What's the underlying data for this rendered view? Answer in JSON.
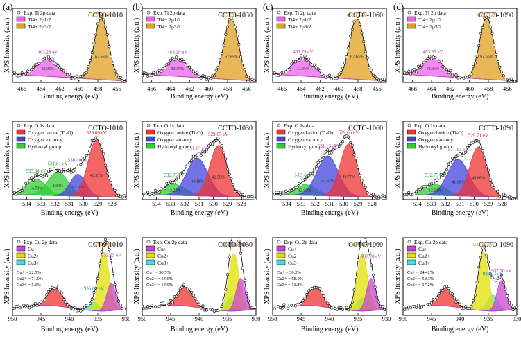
{
  "chart_data": [
    {
      "type": "line",
      "panel_label": "(a)",
      "sample": "CCTO-1010",
      "element": "Ti",
      "title": "Exp. Ti 2p data",
      "legend": [
        "Ti4+ 2p1/2",
        "Ti4+ 2p3/2"
      ],
      "xlabel": "Binding energy (eV)",
      "ylabel": "XPS Intensity (a.u.)",
      "xlim": [
        467,
        455
      ],
      "xticks": [
        466,
        464,
        462,
        460,
        458,
        456
      ],
      "peaks": [
        {
          "name": "Ti4+ 2p1/2",
          "center": 463.28,
          "width": 1.1,
          "amp": 0.27,
          "color": "#ee60ee",
          "label": "463.28 eV",
          "percent": "32.35%"
        },
        {
          "name": "Ti4+ 2p3/2",
          "center": 457.61,
          "width": 0.75,
          "amp": 0.9,
          "color": "#e0a020",
          "label": "457.61 eV",
          "percent": "67.65%"
        }
      ]
    },
    {
      "type": "line",
      "panel_label": "(b)",
      "sample": "CCTO-1030",
      "element": "Ti",
      "title": "Exp. Ti 2p data",
      "legend": [
        "Ti4+ 2p1/2",
        "Ti4+ 2p3/2"
      ],
      "xlabel": "Binding energy (eV)",
      "ylabel": "XPS Intensity (a.u.)",
      "xlim": [
        467,
        455
      ],
      "xticks": [
        466,
        464,
        462,
        460,
        458,
        456
      ],
      "peaks": [
        {
          "name": "Ti4+ 2p1/2",
          "center": 463.28,
          "width": 1.1,
          "amp": 0.27,
          "color": "#ee60ee",
          "label": "463.28 eV",
          "percent": "32.35%"
        },
        {
          "name": "Ti4+ 2p3/2",
          "center": 457.61,
          "width": 0.75,
          "amp": 0.9,
          "color": "#e0a020",
          "label": "457.61 eV",
          "percent": "67.65%"
        }
      ]
    },
    {
      "type": "line",
      "panel_label": "(c)",
      "sample": "CCTO-1060",
      "element": "Ti",
      "title": "Exp. Ti 2p data",
      "legend": [
        "Ti4+ 2p1/2",
        "Ti4+ 2p3/2"
      ],
      "xlabel": "Binding energy (eV)",
      "ylabel": "XPS Intensity (a.u.)",
      "xlim": [
        467,
        455
      ],
      "xticks": [
        466,
        464,
        462,
        460,
        458,
        456
      ],
      "peaks": [
        {
          "name": "Ti4+ 2p1/2",
          "center": 463.79,
          "width": 1.1,
          "amp": 0.27,
          "color": "#ee60ee",
          "label": "463.79 eV",
          "percent": "32.35%"
        },
        {
          "name": "Ti4+ 2p3/2",
          "center": 458.12,
          "width": 0.75,
          "amp": 0.9,
          "color": "#e0a020",
          "label": "458.12 eV",
          "percent": "67.65%"
        }
      ]
    },
    {
      "type": "line",
      "panel_label": "(d)",
      "sample": "CCTO-1090",
      "element": "Ti",
      "title": "Exp. Ti 2p data",
      "legend": [
        "Ti4+ 2p1/2",
        "Ti4+ 2p3/2"
      ],
      "xlabel": "Binding energy (eV)",
      "ylabel": "XPS Intensity (a.u.)",
      "xlim": [
        467,
        455
      ],
      "xticks": [
        466,
        464,
        462,
        460,
        458,
        456
      ],
      "peaks": [
        {
          "name": "Ti4+ 2p1/2",
          "center": 463.85,
          "width": 1.1,
          "amp": 0.27,
          "color": "#ee60ee",
          "label": "463.85 eV",
          "percent": "32.35%"
        },
        {
          "name": "Ti4+ 2p3/2",
          "center": 458.18,
          "width": 0.75,
          "amp": 0.9,
          "color": "#e0a020",
          "label": "458.18 eV",
          "percent": "67.65%"
        }
      ]
    },
    {
      "type": "line",
      "sample": "CCTO-1010",
      "element": "O",
      "title": "Exp. O 1s data",
      "legend": [
        "Oxygen lattice (Ti-O)",
        "Oxygen vacancy",
        "Hydroxyl group"
      ],
      "xlabel": "Binding energy (eV)",
      "ylabel": "XPS Intensity (a.u.)",
      "xlim": [
        535,
        527
      ],
      "xticks": [
        534,
        533,
        532,
        531,
        530,
        529,
        528
      ],
      "peaks": [
        {
          "name": "Hydroxyl group",
          "center": 533.34,
          "width": 0.7,
          "amp": 0.22,
          "color": "#33cc33",
          "label": "533.34 eV",
          "percent": "14.70%"
        },
        {
          "name": "Hydroxyl group",
          "center": 531.81,
          "width": 0.7,
          "amp": 0.33,
          "color": "#33cc33",
          "label": "531.81 eV",
          "percent": "8.39%"
        },
        {
          "name": "Oxygen vacancy",
          "center": 530.4,
          "width": 0.55,
          "amp": 0.3,
          "color": "#4444dd",
          "label": "530.40 eV",
          "percent": "17.78%"
        },
        {
          "name": "Oxygen lattice (Ti-O)",
          "center": 529.09,
          "width": 0.6,
          "amp": 0.78,
          "color": "#ee3333",
          "label": "529.09 eV",
          "percent": "49.53%"
        }
      ]
    },
    {
      "type": "line",
      "sample": "CCTO-1030",
      "element": "O",
      "title": "Exp. O 1s data",
      "legend": [
        "Oxygen lattice (Ti-O)",
        "Oxygen vacancy",
        "Hydroxyl group"
      ],
      "xlabel": "Binding energy (eV)",
      "ylabel": "XPS Intensity (a.u.)",
      "xlim": [
        535,
        527
      ],
      "xticks": [
        534,
        533,
        532,
        531,
        530,
        529,
        528
      ],
      "peaks": [
        {
          "name": "Hydroxyl group",
          "center": 532.75,
          "width": 0.8,
          "amp": 0.15,
          "color": "#33cc33",
          "label": "532.75 eV",
          "percent": "13.25%"
        },
        {
          "name": "Oxygen vacancy",
          "center": 531.13,
          "width": 0.75,
          "amp": 0.52,
          "color": "#4444dd",
          "label": "531.13 eV",
          "percent": "44.19%"
        },
        {
          "name": "Oxygen lattice (Ti-O)",
          "center": 529.65,
          "width": 0.6,
          "amp": 0.7,
          "color": "#ee3333",
          "label": "529.65 eV",
          "percent": "42.58%"
        }
      ]
    },
    {
      "type": "line",
      "sample": "CCTO-1060",
      "element": "O",
      "title": "Exp. O 1s data",
      "legend": [
        "Oxygen lattice (Ti-O)",
        "Oxygen vacancy",
        "Hydroxyl group"
      ],
      "xlabel": "Binding energy (eV)",
      "ylabel": "XPS Intensity (a.u.)",
      "xlim": [
        535,
        527
      ],
      "xticks": [
        534,
        533,
        532,
        531,
        530,
        529,
        528
      ],
      "peaks": [
        {
          "name": "Hydroxyl group",
          "center": 532.75,
          "width": 0.8,
          "amp": 0.15,
          "color": "#33cc33",
          "label": "532.75 eV",
          "percent": "12.60%"
        },
        {
          "name": "Oxygen vacancy",
          "center": 531.13,
          "width": 0.75,
          "amp": 0.55,
          "color": "#4444dd",
          "label": "531.13 eV",
          "percent": "42.62%"
        },
        {
          "name": "Oxygen lattice (Ti-O)",
          "center": 529.66,
          "width": 0.6,
          "amp": 0.72,
          "color": "#ee3333",
          "label": "529.66 eV",
          "percent": "44.77%"
        }
      ]
    },
    {
      "type": "line",
      "sample": "CCTO-1090",
      "element": "O",
      "title": "Exp. O 1s data",
      "legend": [
        "Oxygen lattice (Ti-O)",
        "Oxygen vacancy",
        "Hydroxyl group"
      ],
      "xlabel": "Binding energy (eV)",
      "ylabel": "XPS Intensity (a.u.)",
      "xlim": [
        535,
        527
      ],
      "xticks": [
        534,
        533,
        532,
        531,
        530,
        529,
        528
      ],
      "peaks": [
        {
          "name": "Hydroxyl group",
          "center": 532.75,
          "width": 0.8,
          "amp": 0.15,
          "color": "#33cc33",
          "label": "532.75 eV",
          "percent": "12.54%"
        },
        {
          "name": "Oxygen vacancy",
          "center": 531.13,
          "width": 0.75,
          "amp": 0.5,
          "color": "#4444dd",
          "label": "531.13 eV",
          "percent": "41.60%"
        },
        {
          "name": "Oxygen lattice (Ti-O)",
          "center": 529.71,
          "width": 0.6,
          "amp": 0.68,
          "color": "#ee3333",
          "label": "529.71 eV",
          "percent": "45.86%"
        }
      ]
    },
    {
      "type": "line",
      "sample": "CCTO-1010",
      "element": "Cu",
      "title": "Exp. Cu 2p data",
      "legend": [
        "Cu+",
        "Cu2+",
        "Cu3+"
      ],
      "composition": [
        "Cu+ = 22.5%",
        "Cu2+ = 71.9%",
        "Cu3+ = 5.6%"
      ],
      "xlabel": "Binding energy (eV)",
      "ylabel": "XPS Intensity (a.u.)",
      "xlim": [
        950,
        930
      ],
      "xticks": [
        950,
        945,
        940,
        935,
        930
      ],
      "peaks": [
        {
          "name": "satellite",
          "center": 942.5,
          "width": 1.3,
          "amp": 0.25,
          "color": "#ee3333",
          "label": "",
          "percent": ""
        },
        {
          "name": "Cu3+",
          "center": 935.69,
          "width": 0.9,
          "amp": 0.12,
          "color": "#40e0e0",
          "label": "935.69 eV",
          "percent": ""
        },
        {
          "name": "Cu2+",
          "center": 933.89,
          "width": 0.9,
          "amp": 0.82,
          "color": "#e0e000",
          "label": "933.89 eV",
          "percent": ""
        },
        {
          "name": "Cu+",
          "center": 932.63,
          "width": 0.8,
          "amp": 0.38,
          "color": "#cc44cc",
          "label": "932.63 eV",
          "percent": ""
        }
      ]
    },
    {
      "type": "line",
      "sample": "CCTO-1030",
      "element": "Cu",
      "title": "Exp. Cu 2p data",
      "legend": [
        "Cu+",
        "Cu2+",
        "Cu3+"
      ],
      "composition": [
        "Cu+ = 30.5%",
        "Cu2+ = 54.6%",
        "Cu3+ = 14.9%"
      ],
      "xlabel": "Binding energy (eV)",
      "ylabel": "XPS Intensity (a.u.)",
      "xlim": [
        950,
        930
      ],
      "xticks": [
        950,
        945,
        940,
        935,
        930
      ],
      "peaks": [
        {
          "name": "satellite",
          "center": 942.5,
          "width": 1.3,
          "amp": 0.27,
          "color": "#ee3333",
          "label": "",
          "percent": ""
        },
        {
          "name": "Cu3+",
          "center": 934.21,
          "width": 0.9,
          "amp": 0.2,
          "color": "#40e0e0",
          "label": "934.21 eV",
          "percent": ""
        },
        {
          "name": "Cu2+",
          "center": 933.89,
          "width": 0.9,
          "amp": 0.8,
          "color": "#e0e000",
          "label": "933.89 eV",
          "percent": ""
        },
        {
          "name": "Cu+",
          "center": 932.7,
          "width": 0.8,
          "amp": 0.45,
          "color": "#cc44cc",
          "label": "932.70 eV",
          "percent": ""
        }
      ]
    },
    {
      "type": "line",
      "sample": "CCTO-1060",
      "element": "Cu",
      "title": "Exp. Cu 2p data",
      "legend": [
        "Cu+",
        "Cu2+",
        "Cu3+"
      ],
      "composition": [
        "Cu+ = 30.2%",
        "Cu2+ = 58.0%",
        "Cu3+ = 11.8%"
      ],
      "xlabel": "Binding energy (eV)",
      "ylabel": "XPS Intensity (a.u.)",
      "xlim": [
        950,
        930
      ],
      "xticks": [
        950,
        945,
        940,
        935,
        930
      ],
      "peaks": [
        {
          "name": "satellite",
          "center": 942.5,
          "width": 1.3,
          "amp": 0.27,
          "color": "#ee3333",
          "label": "",
          "percent": ""
        },
        {
          "name": "Cu3+",
          "center": 934.3,
          "width": 0.9,
          "amp": 0.18,
          "color": "#40e0e0",
          "label": "934.30 eV",
          "percent": ""
        },
        {
          "name": "Cu2+",
          "center": 934.24,
          "width": 0.9,
          "amp": 0.8,
          "color": "#e0e000",
          "label": "934.24 eV",
          "percent": ""
        },
        {
          "name": "Cu+",
          "center": 932.7,
          "width": 0.8,
          "amp": 0.45,
          "color": "#cc44cc",
          "label": "932.70 eV",
          "percent": ""
        }
      ]
    },
    {
      "type": "line",
      "sample": "CCTO-1090",
      "element": "Cu",
      "title": "Exp. Cu 2p data",
      "legend": [
        "Cu+",
        "Cu2+",
        "Cu3+"
      ],
      "composition": [
        "Cu+ = 24.42%",
        "Cu2+ = 58.3%",
        "Cu3+ = 17.2%"
      ],
      "xlabel": "Binding energy (eV)",
      "ylabel": "XPS Intensity (a.u.)",
      "xlim": [
        950,
        930
      ],
      "xticks": [
        950,
        945,
        940,
        935,
        930
      ],
      "peaks": [
        {
          "name": "satellite",
          "center": 942.5,
          "width": 1.3,
          "amp": 0.25,
          "color": "#ee3333",
          "label": "",
          "percent": ""
        },
        {
          "name": "Cu3+",
          "center": 934.23,
          "width": 0.9,
          "amp": 0.22,
          "color": "#40e0e0",
          "label": "934.23 eV",
          "percent": ""
        },
        {
          "name": "Cu2+",
          "center": 935.89,
          "width": 0.9,
          "amp": 0.82,
          "color": "#e0e000",
          "label": "935.89 eV",
          "percent": ""
        },
        {
          "name": "Cu+",
          "center": 932.7,
          "width": 0.8,
          "amp": 0.42,
          "color": "#cc44cc",
          "label": "932.70 eV",
          "percent": ""
        }
      ]
    }
  ]
}
